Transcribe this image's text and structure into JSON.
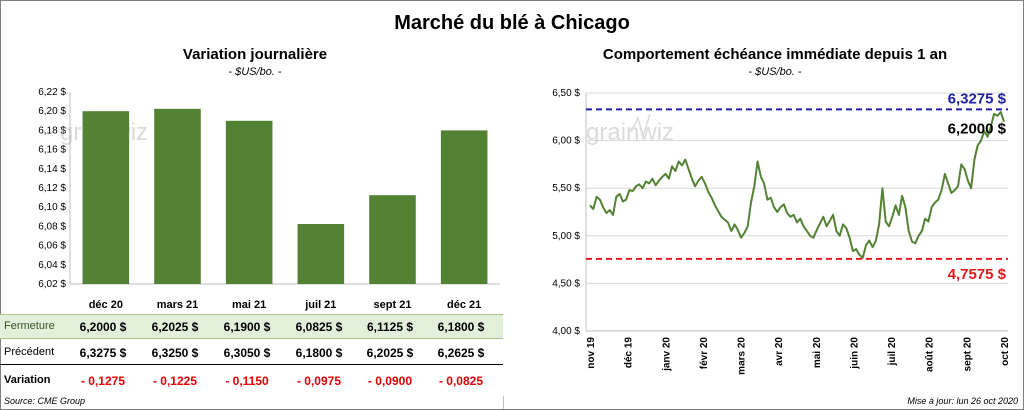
{
  "title": "Marché du blé à Chicago",
  "left_chart": {
    "title": "Variation journalière",
    "subtitle": "- $US/bo. -"
  },
  "right_chart": {
    "title": "Comportement échéance immédiate depuis 1 an",
    "subtitle": "- $US/bo. -"
  },
  "watermark": "grainwiz",
  "table": {
    "rows": [
      {
        "label": "Fermeture",
        "values": [
          "6,2000 $",
          "6,2025 $",
          "6,1900 $",
          "6,0825 $",
          "6,1125 $",
          "6,1800 $"
        ]
      },
      {
        "label": "Précédent",
        "values": [
          "6,3275 $",
          "6,3250 $",
          "6,3050 $",
          "6,1800 $",
          "6,2025 $",
          "6,2625 $"
        ]
      },
      {
        "label": "Variation",
        "values": [
          "- 0,1275",
          "- 0,1225",
          "- 0,1150",
          "- 0,0975",
          "- 0,0900",
          "- 0,0825"
        ]
      }
    ]
  },
  "footer": {
    "source": "Source: CME Group",
    "updated": "Mise à jour: lun 26 oct 2020"
  },
  "colors": {
    "bar": "#548235",
    "line": "#548235",
    "high": "#1f1fa8",
    "low": "#e31a1a",
    "grid": "#d9d9d9"
  },
  "chart_data": [
    {
      "type": "bar",
      "title": "Variation journalière",
      "subtitle": "- $US/bo. -",
      "categories": [
        "déc 20",
        "mars 21",
        "mai 21",
        "juil 21",
        "sept 21",
        "déc 21"
      ],
      "values": [
        6.2,
        6.2025,
        6.19,
        6.0825,
        6.1125,
        6.18
      ],
      "ylim": [
        6.02,
        6.22
      ],
      "yticks": [
        "6,02 $",
        "6,04 $",
        "6,06 $",
        "6,08 $",
        "6,10 $",
        "6,12 $",
        "6,14 $",
        "6,16 $",
        "6,18 $",
        "6,20 $",
        "6,22 $"
      ],
      "grid": false
    },
    {
      "type": "line",
      "title": "Comportement échéance immédiate depuis 1 an",
      "subtitle": "- $US/bo. -",
      "xlabels": [
        "nov 19",
        "déc 19",
        "janv 20",
        "févr 20",
        "mars 20",
        "avr 20",
        "mai 20",
        "juin 20",
        "juil 20",
        "août 20",
        "sept 20",
        "oct 20"
      ],
      "yticks": [
        "4,00 $",
        "4,50 $",
        "5,00 $",
        "5,50 $",
        "6,00 $",
        "6,50 $"
      ],
      "ylim": [
        4.0,
        6.5
      ],
      "high": {
        "value": 6.3275,
        "label": "6,3275 $"
      },
      "low": {
        "value": 4.7575,
        "label": "4,7575 $"
      },
      "last": {
        "value": 6.2,
        "label": "6,2000 $"
      },
      "grid": "horizontal",
      "series": [
        {
          "values": [
            5.32,
            5.28,
            5.41,
            5.38,
            5.3,
            5.24,
            5.27,
            5.22,
            5.41,
            5.44,
            5.36,
            5.38,
            5.48,
            5.47,
            5.52,
            5.54,
            5.5,
            5.57,
            5.55,
            5.6,
            5.53,
            5.58,
            5.62,
            5.65,
            5.6,
            5.73,
            5.68,
            5.78,
            5.74,
            5.8,
            5.7,
            5.6,
            5.52,
            5.58,
            5.62,
            5.55,
            5.46,
            5.4,
            5.32,
            5.26,
            5.2,
            5.17,
            5.14,
            5.05,
            5.12,
            5.06,
            4.98,
            5.03,
            5.1,
            5.35,
            5.52,
            5.78,
            5.62,
            5.55,
            5.38,
            5.4,
            5.3,
            5.25,
            5.3,
            5.33,
            5.24,
            5.2,
            5.22,
            5.14,
            5.18,
            5.1,
            5.05,
            5.0,
            4.98,
            5.06,
            5.13,
            5.2,
            5.1,
            5.16,
            5.22,
            5.05,
            5.0,
            5.12,
            5.08,
            4.98,
            4.84,
            4.86,
            4.8,
            4.77,
            4.9,
            4.95,
            4.88,
            4.95,
            5.12,
            5.5,
            5.15,
            5.1,
            5.2,
            5.32,
            5.22,
            5.42,
            5.3,
            5.05,
            4.94,
            4.92,
            5.0,
            5.05,
            5.18,
            5.15,
            5.3,
            5.35,
            5.38,
            5.48,
            5.65,
            5.55,
            5.45,
            5.48,
            5.52,
            5.75,
            5.7,
            5.58,
            5.5,
            5.8,
            5.95,
            6.0,
            6.1,
            6.04,
            6.15,
            6.28,
            6.26,
            6.3,
            6.2
          ]
        }
      ]
    }
  ]
}
